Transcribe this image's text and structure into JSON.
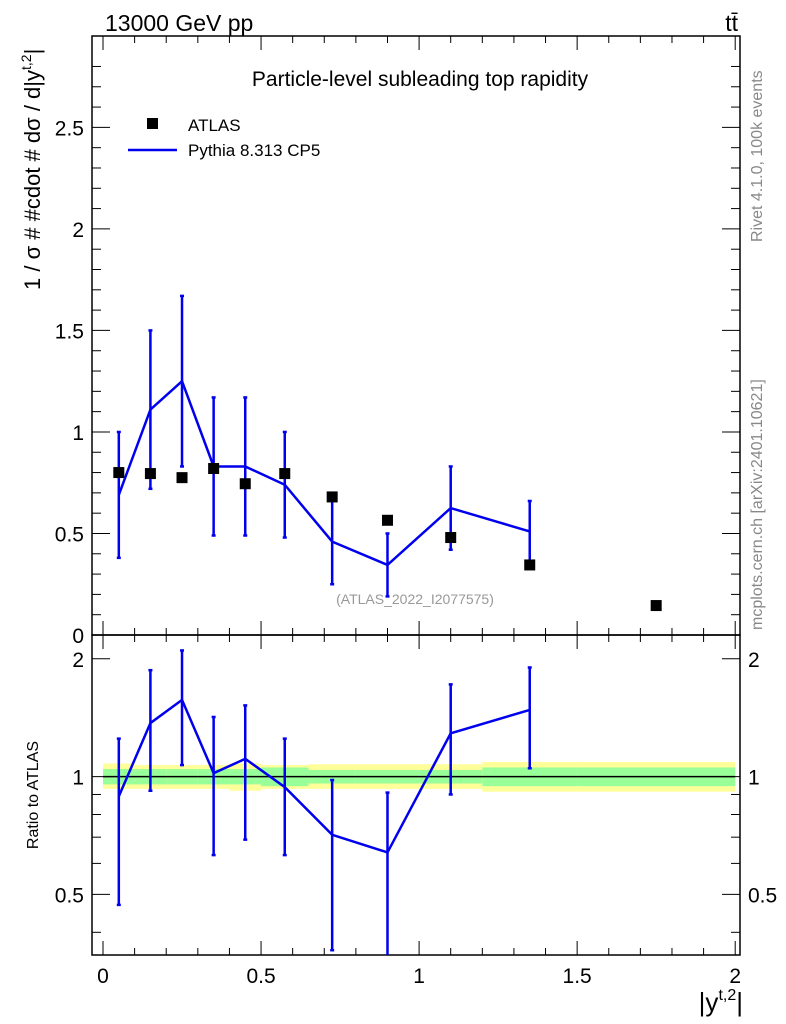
{
  "header": {
    "left": "13000 GeV pp",
    "right": "tt̄"
  },
  "side_labels": {
    "rivet": "Rivet 4.1.0,  100k events",
    "mcplots": "mcplots.cern.ch [arXiv:2401.10621]"
  },
  "colors": {
    "data": "#000000",
    "mc": "#0000ee",
    "band_inner": "#99ff99",
    "band_outer": "#ffff99",
    "analysis_id": "#999999"
  },
  "chart_data": [
    {
      "type": "scatter",
      "panel": "main",
      "title": "Particle-level subleading top rapidity",
      "analysis_id": "(ATLAS_2022_I2077575)",
      "xlabel": "|y^{t,2}|",
      "ylabel": "1 / σ # #cdot # dσ / d|y^{t,2}|",
      "xlim": [
        0,
        2.05
      ],
      "ylim": [
        0,
        2.95
      ],
      "yticks": [
        {
          "v": 0,
          "label": "0"
        },
        {
          "v": 0.5,
          "label": "0.5"
        },
        {
          "v": 1,
          "label": "1"
        },
        {
          "v": 1.5,
          "label": "1.5"
        },
        {
          "v": 2,
          "label": "2"
        },
        {
          "v": 2.5,
          "label": "2.5"
        }
      ],
      "legend": {
        "position": "top-left",
        "entries": [
          {
            "label": "ATLAS",
            "series": "data"
          },
          {
            "label": "Pythia 8.313 CP5",
            "series": "mc"
          }
        ]
      },
      "bin_edges": [
        0.0,
        0.1,
        0.2,
        0.3,
        0.4,
        0.5,
        0.65,
        0.8,
        1.0,
        1.2,
        1.5,
        2.0
      ],
      "series": [
        {
          "name": "ATLAS",
          "style": "markers",
          "x": [
            0.05,
            0.15,
            0.25,
            0.35,
            0.45,
            0.575,
            0.725,
            0.9,
            1.1,
            1.35,
            1.75
          ],
          "values": [
            0.8,
            0.795,
            0.775,
            0.82,
            0.745,
            0.795,
            0.68,
            0.565,
            0.48,
            0.345,
            0.145
          ]
        },
        {
          "name": "Pythia 8.313 CP5",
          "style": "line",
          "x": [
            0.05,
            0.15,
            0.25,
            0.35,
            0.45,
            0.575,
            0.725,
            0.9,
            1.1,
            1.35
          ],
          "values": [
            0.69,
            1.11,
            1.25,
            0.83,
            0.83,
            0.74,
            0.46,
            0.345,
            0.625,
            0.51
          ],
          "err_up": [
            1.0,
            1.5,
            1.67,
            1.17,
            1.17,
            1.0,
            0.66,
            0.5,
            0.83,
            0.66
          ],
          "err_down": [
            0.38,
            0.72,
            0.83,
            0.49,
            0.49,
            0.48,
            0.25,
            0.19,
            0.42,
            0.36
          ]
        }
      ]
    },
    {
      "type": "line",
      "panel": "ratio",
      "xlabel": "|y^{t,2}|",
      "ylabel": "Ratio to ATLAS",
      "xlim": [
        0,
        2.05
      ],
      "ylim": [
        0.35,
        2.3
      ],
      "yscale": "log",
      "xticks": [
        {
          "v": 0,
          "label": "0"
        },
        {
          "v": 0.5,
          "label": "0.5"
        },
        {
          "v": 1,
          "label": "1"
        },
        {
          "v": 1.5,
          "label": "1.5"
        },
        {
          "v": 2,
          "label": "2"
        }
      ],
      "yticks": [
        {
          "v": 0.5,
          "label": "0.5"
        },
        {
          "v": 1,
          "label": "1"
        },
        {
          "v": 2,
          "label": "2"
        }
      ],
      "reference": 1,
      "band": {
        "bin_edges": [
          0.0,
          0.1,
          0.2,
          0.3,
          0.4,
          0.5,
          0.65,
          0.8,
          1.0,
          1.2,
          1.5,
          2.0
        ],
        "inner_lo": [
          0.955,
          0.955,
          0.955,
          0.955,
          0.955,
          0.945,
          0.96,
          0.96,
          0.96,
          0.945,
          0.945
        ],
        "inner_hi": [
          1.045,
          1.045,
          1.045,
          1.045,
          1.045,
          1.055,
          1.04,
          1.04,
          1.04,
          1.055,
          1.055
        ],
        "outer_lo": [
          0.93,
          0.93,
          0.93,
          0.93,
          0.92,
          0.93,
          0.93,
          0.93,
          0.93,
          0.915,
          0.915
        ],
        "outer_hi": [
          1.08,
          1.07,
          1.07,
          1.07,
          1.08,
          1.07,
          1.075,
          1.075,
          1.075,
          1.09,
          1.09
        ]
      },
      "series": [
        {
          "name": "Pythia 8.313 CP5",
          "x": [
            0.05,
            0.15,
            0.25,
            0.35,
            0.45,
            0.575,
            0.725,
            0.9,
            1.1,
            1.35
          ],
          "values": [
            0.89,
            1.37,
            1.57,
            1.02,
            1.11,
            0.94,
            0.71,
            0.64,
            1.29,
            1.48
          ],
          "err_up": [
            1.25,
            1.87,
            2.1,
            1.42,
            1.52,
            1.25,
            0.98,
            0.91,
            1.72,
            1.9
          ],
          "err_down": [
            0.47,
            0.92,
            1.07,
            0.63,
            0.69,
            0.63,
            0.36,
            0.33,
            0.9,
            1.05
          ]
        }
      ]
    }
  ]
}
